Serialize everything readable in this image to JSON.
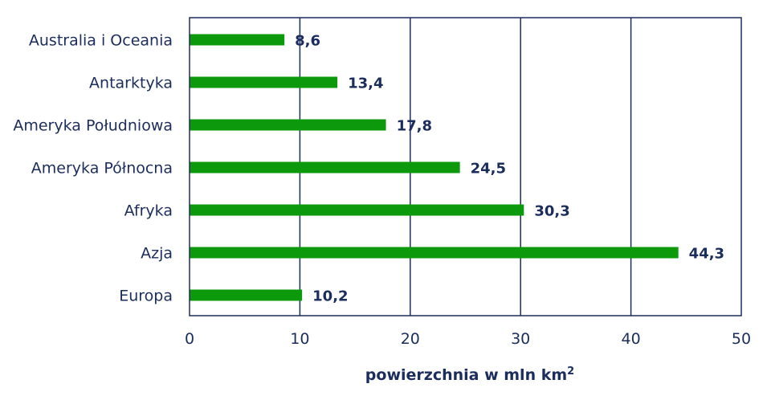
{
  "chart_data": {
    "type": "bar",
    "orientation": "horizontal",
    "categories": [
      "Australia i Oceania",
      "Antarktyka",
      "Ameryka Południowa",
      "Ameryka Północna",
      "Afryka",
      "Azja",
      "Europa"
    ],
    "values": [
      8.6,
      13.4,
      17.8,
      24.5,
      30.3,
      44.3,
      10.2
    ],
    "data_labels": [
      "8,6",
      "13,4",
      "17,8",
      "24,5",
      "30,3",
      "44,3",
      "10,2"
    ],
    "xlim": [
      0,
      50
    ],
    "xticks": [
      0,
      10,
      20,
      30,
      40,
      50
    ],
    "xtick_labels": [
      "0",
      "10",
      "20",
      "30",
      "40",
      "50"
    ],
    "xlabel": "powierzchnia w mln km",
    "xlabel_superscript": "2",
    "grid": "vertical",
    "bar_color": "#0c9a0c",
    "text_color": "#1b2d5c",
    "frame_color": "#1b2d5c"
  }
}
